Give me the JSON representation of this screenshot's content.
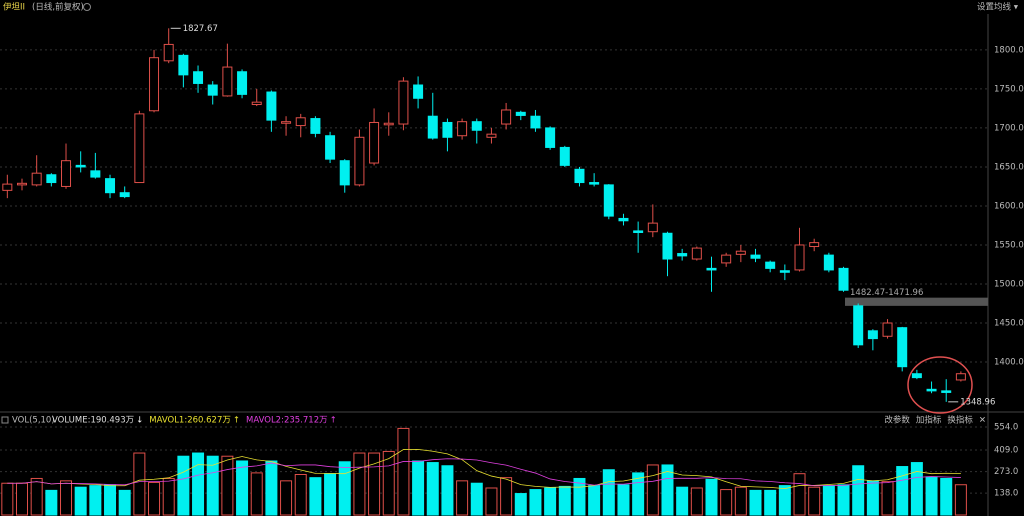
{
  "header": {
    "symbol": "伊坦II",
    "mode": "(日线,前复权)",
    "settings": "设置均线 ▾"
  },
  "chart_data": [
    {
      "type": "candlestick",
      "up_color": "#e0504a",
      "down_color": "#00f0f0",
      "grid": true,
      "ylim": [
        1338.5,
        1846
      ],
      "yticks": [
        {
          "value": 1400,
          "label": "1400.00"
        },
        {
          "value": 1450,
          "label": "1450.00"
        },
        {
          "value": 1500,
          "label": "1500.00"
        },
        {
          "value": 1550,
          "label": "1550.00"
        },
        {
          "value": 1600,
          "label": "1600.00"
        },
        {
          "value": 1650,
          "label": "1650.00"
        },
        {
          "value": 1700,
          "label": "1700.00"
        },
        {
          "value": 1750,
          "label": "1750.00"
        },
        {
          "value": 1800,
          "label": "1800.00"
        }
      ],
      "open": [
        1620,
        1627,
        1627,
        1640,
        1625,
        1652,
        1645,
        1635,
        1617,
        1630,
        1722,
        1786,
        1793,
        1772,
        1755,
        1741,
        1772,
        1730,
        1746,
        1706,
        1703,
        1712,
        1690,
        1658,
        1627,
        1655,
        1704,
        1705,
        1755,
        1715,
        1707,
        1690,
        1708,
        1688,
        1705,
        1720,
        1715,
        1700,
        1675,
        1647,
        1630,
        1627,
        1584,
        1568,
        1567,
        1565,
        1539,
        1532,
        1520,
        1527,
        1538,
        1537,
        1528,
        1517,
        1518,
        1548,
        1537,
        1520,
        1472,
        1440,
        1433,
        1444,
        1385,
        1365,
        1363,
        1377
      ],
      "high": [
        1640,
        1635,
        1665,
        1642,
        1680,
        1670,
        1668,
        1640,
        1625,
        1722,
        1800,
        1827.67,
        1795,
        1780,
        1760,
        1808,
        1775,
        1750,
        1748,
        1715,
        1718,
        1715,
        1695,
        1660,
        1698,
        1725,
        1720,
        1765,
        1766,
        1745,
        1712,
        1712,
        1712,
        1700,
        1732,
        1722,
        1723,
        1702,
        1677,
        1650,
        1642,
        1628,
        1590,
        1580,
        1602,
        1567,
        1545,
        1548,
        1535,
        1540,
        1550,
        1545,
        1530,
        1525,
        1572,
        1558,
        1540,
        1522,
        1475,
        1442,
        1455,
        1445,
        1390,
        1375,
        1378,
        1388
      ],
      "low": [
        1610,
        1620,
        1625,
        1625,
        1622,
        1643,
        1635,
        1610,
        1610,
        1630,
        1720,
        1783,
        1752,
        1745,
        1730,
        1740,
        1738,
        1728,
        1695,
        1690,
        1688,
        1688,
        1655,
        1617,
        1625,
        1652,
        1690,
        1697,
        1725,
        1685,
        1670,
        1685,
        1680,
        1680,
        1698,
        1710,
        1695,
        1672,
        1650,
        1625,
        1625,
        1583,
        1575,
        1540,
        1560,
        1510,
        1530,
        1530,
        1490,
        1522,
        1528,
        1528,
        1515,
        1505,
        1516,
        1542,
        1515,
        1490,
        1418,
        1415,
        1430,
        1388,
        1378,
        1360,
        1348.96,
        1375
      ],
      "close": [
        1628,
        1629,
        1642,
        1630,
        1658,
        1650,
        1637,
        1617,
        1612,
        1718,
        1790,
        1807,
        1768,
        1757,
        1742,
        1778,
        1743,
        1733,
        1710,
        1708,
        1713,
        1693,
        1660,
        1627,
        1688,
        1707,
        1706,
        1760,
        1738,
        1687,
        1688,
        1708,
        1697,
        1692,
        1723,
        1716,
        1700,
        1675,
        1652,
        1630,
        1628,
        1587,
        1581,
        1566,
        1578,
        1532,
        1536,
        1546,
        1518,
        1537,
        1542,
        1533,
        1520,
        1515,
        1550,
        1553,
        1518,
        1492,
        1422,
        1430,
        1450,
        1394,
        1380,
        1363,
        1361,
        1385
      ],
      "high_label": "1827.67",
      "low_label": "1348.96",
      "gap": {
        "label": "1482.47-1471.96",
        "high": 1482.47,
        "low": 1471.96
      }
    },
    {
      "type": "bar",
      "title": "VOL(5,10)",
      "tools": [
        "改参数",
        "加指标",
        "换指标",
        "✕"
      ],
      "ylim": [
        0,
        642
      ],
      "yticks": [
        {
          "value": 138,
          "label": "138.0"
        },
        {
          "value": 273,
          "label": "273.0"
        },
        {
          "value": 409,
          "label": "409.0"
        },
        {
          "value": 554,
          "label": "554.0"
        }
      ],
      "series": [
        {
          "name": "VOLUME:190.493万",
          "trend": "↓",
          "color": "#dddddd",
          "values": [
            200,
            200,
            230,
            155,
            215,
            175,
            185,
            190,
            155,
            390,
            205,
            230,
            370,
            390,
            370,
            370,
            340,
            265,
            340,
            215,
            255,
            235,
            260,
            335,
            390,
            390,
            400,
            545,
            340,
            330,
            310,
            215,
            200,
            170,
            235,
            135,
            160,
            170,
            180,
            230,
            185,
            285,
            190,
            265,
            315,
            315,
            175,
            170,
            225,
            160,
            175,
            155,
            155,
            185,
            260,
            175,
            185,
            190,
            310,
            215,
            210,
            305,
            330,
            240,
            230,
            190.493
          ]
        },
        {
          "name": "MAVOL1:260.627万",
          "trend": "↑",
          "color": "#e8e030",
          "values": [
            200,
            200,
            210,
            196,
            200,
            195,
            192,
            184,
            184,
            219,
            225,
            234,
            270,
            317,
            313,
            346,
            368,
            347,
            337,
            306,
            283,
            262,
            261,
            260,
            295,
            322,
            355,
            412,
            413,
            401,
            385,
            348,
            279,
            245,
            226,
            191,
            180,
            174,
            176,
            175,
            185,
            210,
            214,
            231,
            248,
            274,
            252,
            248,
            240,
            209,
            181,
            177,
            174,
            166,
            186,
            186,
            192,
            199,
            224,
            215,
            222,
            246,
            274,
            260,
            263,
            260.627
          ]
        },
        {
          "name": "MAVOL2:235.712万",
          "trend": "↑",
          "color": "#e040e0",
          "values": [
            200,
            200,
            210,
            196,
            200,
            198,
            196,
            192,
            190,
            210,
            210,
            213,
            227,
            251,
            266,
            286,
            301,
            309,
            327,
            310,
            315,
            315,
            304,
            299,
            301,
            303,
            309,
            337,
            337,
            348,
            354,
            352,
            346,
            329,
            314,
            288,
            264,
            227,
            211,
            201,
            188,
            195,
            194,
            204,
            212,
            230,
            231,
            231,
            236,
            229,
            228,
            215,
            211,
            203,
            198,
            184,
            185,
            187,
            195,
            201,
            204,
            219,
            237,
            242,
            239,
            235.712
          ]
        }
      ]
    }
  ]
}
